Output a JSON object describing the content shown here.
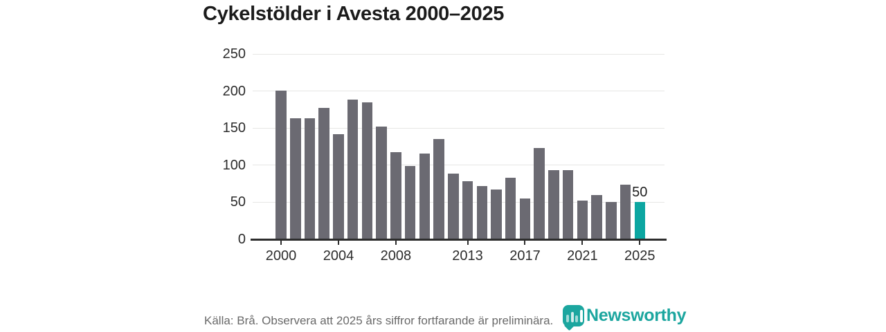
{
  "title": "Cykelstölder i Avesta 2000–2025",
  "footer": {
    "source_note": "Källa: Brå. Observera att 2025 års siffror fortfarande är preliminära."
  },
  "logo": {
    "name": "Newsworthy",
    "icon": "newsworthy-chart-badge-icon",
    "color": "#1ca69f"
  },
  "colors": {
    "bar_gray": "#6b6a72",
    "accent_teal": "#0ca6a1",
    "axis": "#2d2d2d",
    "gridline": "#e6e6e4"
  },
  "chart_data": {
    "type": "bar",
    "title": "Cykelstölder i Avesta 2000–2025",
    "xlabel": "",
    "ylabel": "",
    "categories": [
      2000,
      2001,
      2002,
      2003,
      2004,
      2005,
      2006,
      2007,
      2008,
      2009,
      2010,
      2011,
      2012,
      2013,
      2014,
      2015,
      2016,
      2017,
      2018,
      2019,
      2020,
      2021,
      2022,
      2023,
      2024,
      2025
    ],
    "values": [
      201,
      163,
      163,
      177,
      142,
      188,
      185,
      152,
      118,
      99,
      116,
      135,
      89,
      78,
      72,
      67,
      83,
      55,
      123,
      93,
      93,
      52,
      60,
      50,
      74,
      50
    ],
    "ylim": [
      0,
      250
    ],
    "y_ticks": [
      0,
      50,
      100,
      150,
      200,
      250
    ],
    "x_tick_years": [
      "2000",
      "2004",
      "2008",
      "2013",
      "2017",
      "2021",
      "2025"
    ],
    "x_tick_indices": [
      0,
      4,
      8,
      13,
      17,
      21,
      25
    ],
    "highlight_index": 25,
    "annotation": {
      "index": 25,
      "text": "50"
    },
    "bar_color": "#6b6a72",
    "highlight_color": "#0ca6a1",
    "grid": "horizontal",
    "legend": "none"
  }
}
